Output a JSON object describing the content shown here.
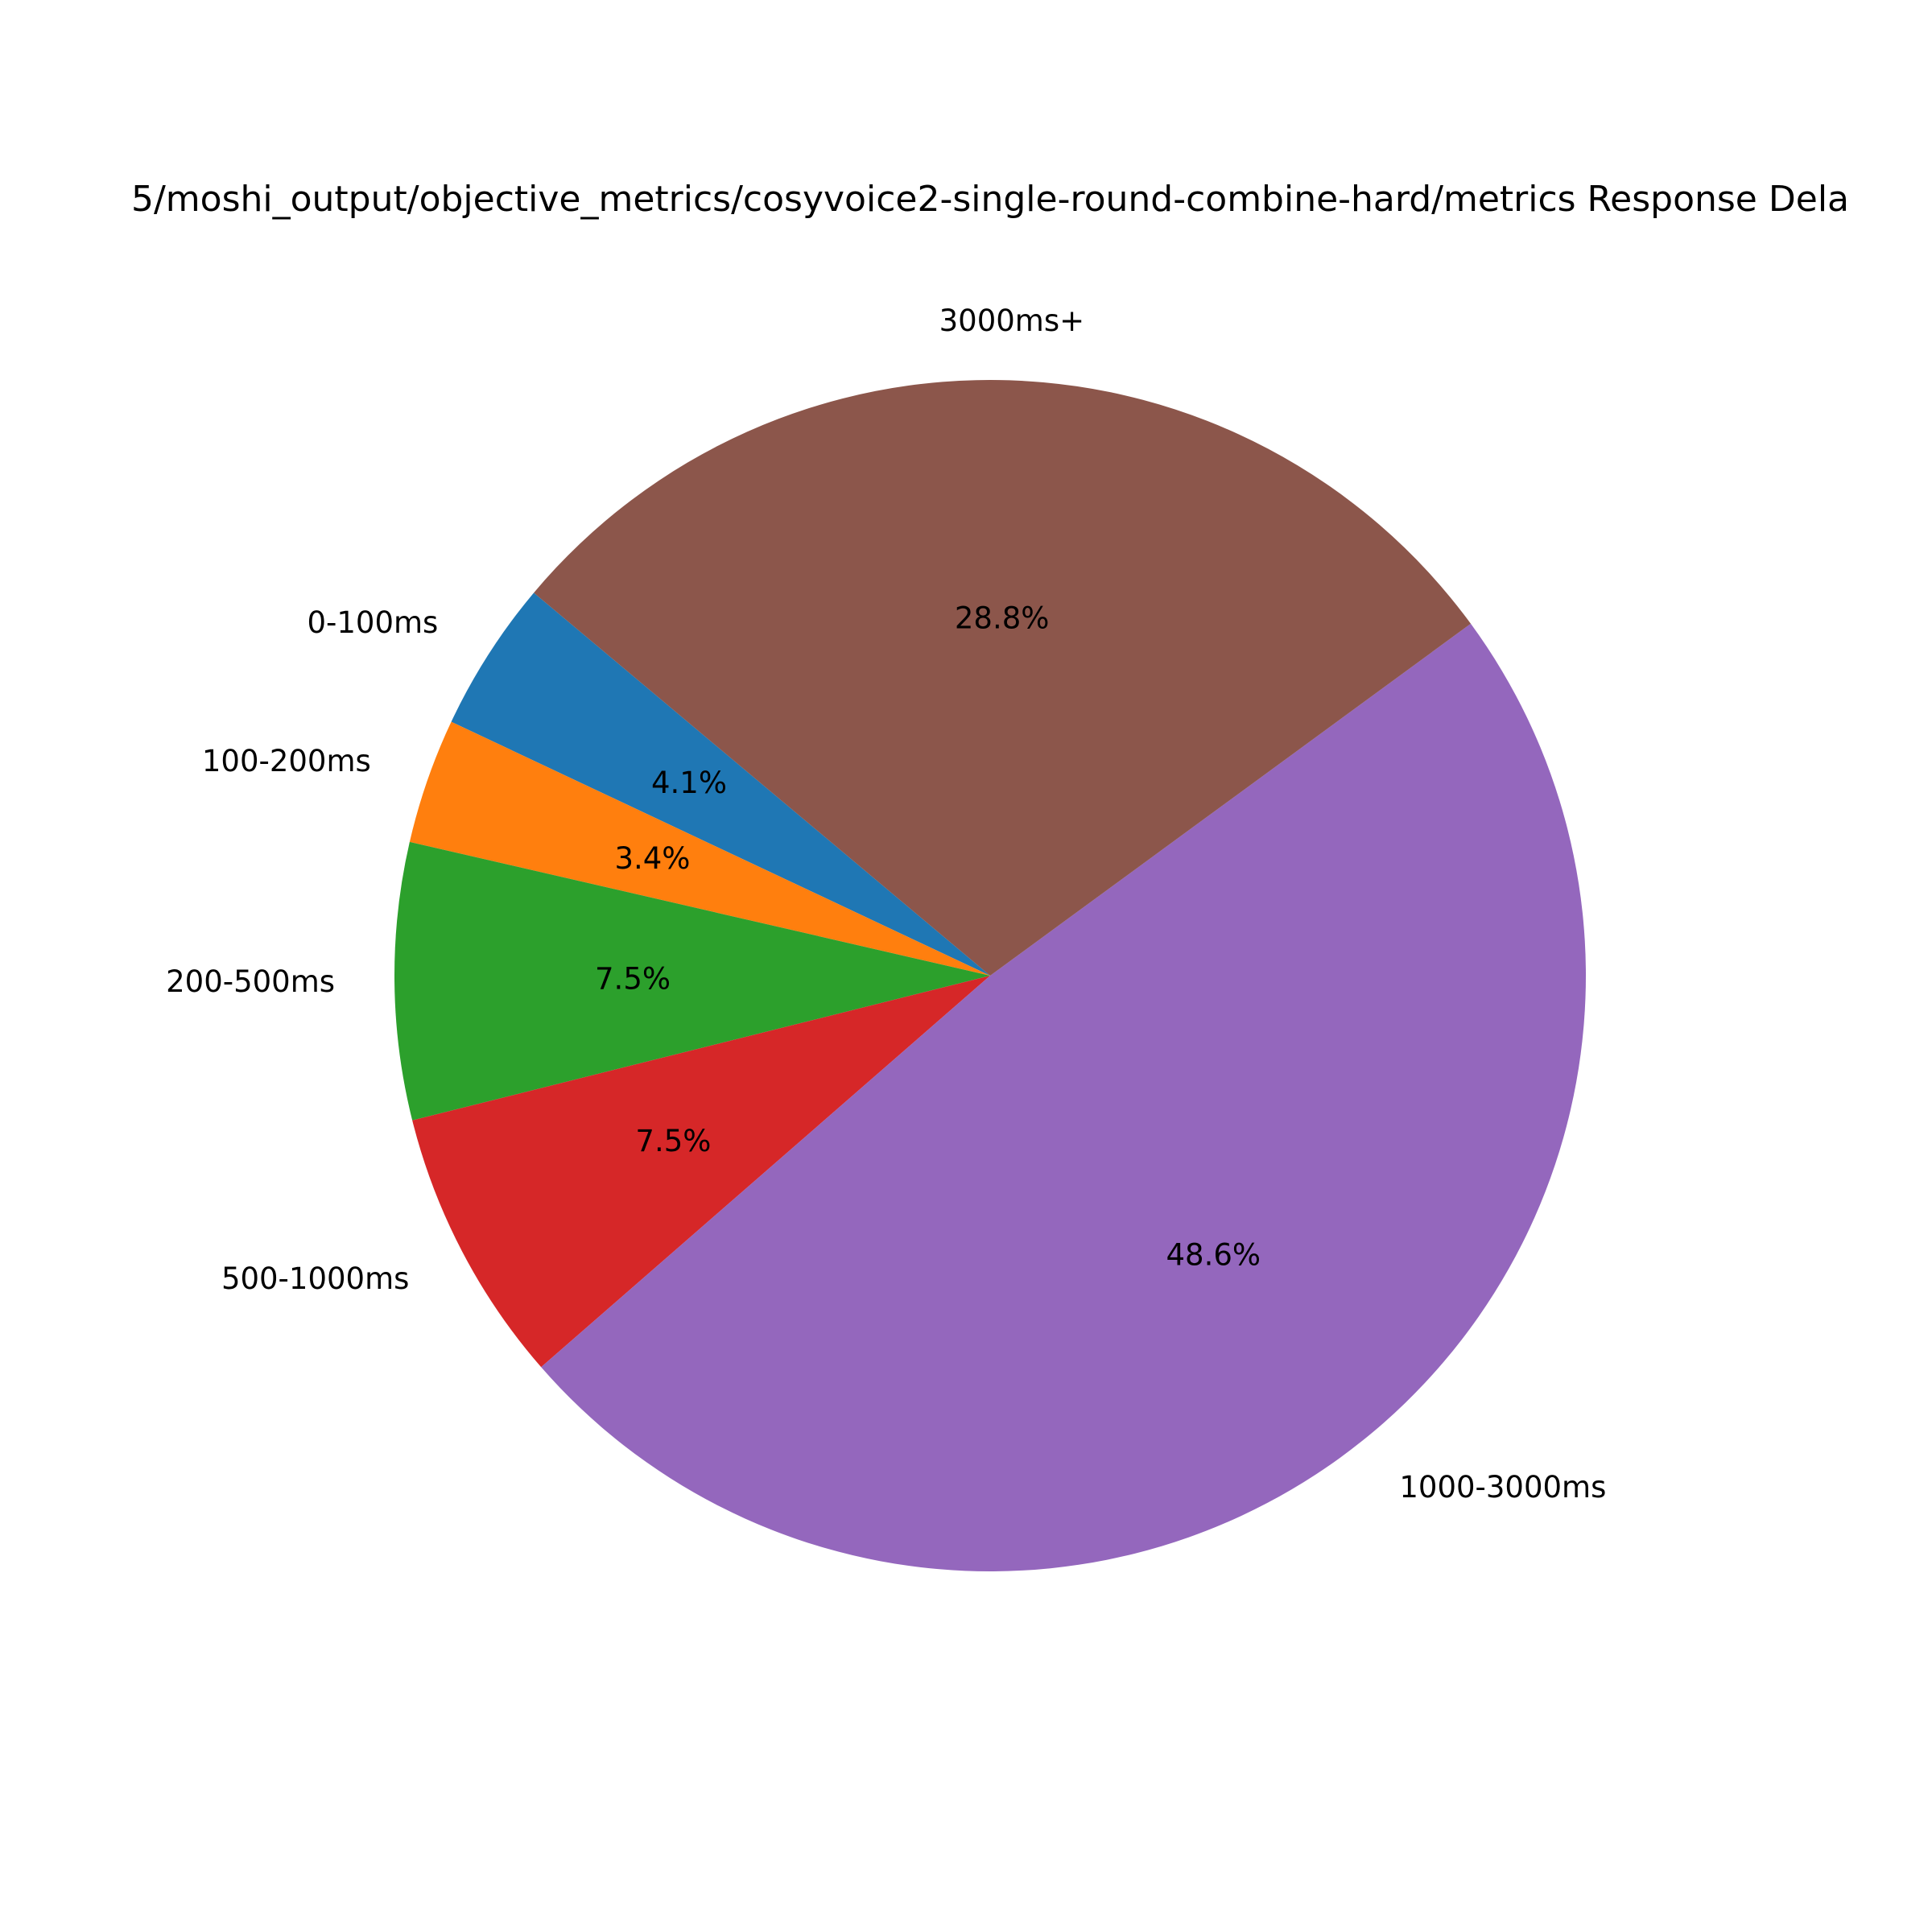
{
  "chart_data": {
    "type": "pie",
    "title": "5/moshi_output/objective_metrics/cosyvoice2-single-round-combine-hard/metrics Response Dela",
    "start_angle_deg": 140,
    "direction": "counterclockwise",
    "slices": [
      {
        "label": "0-100ms",
        "value": 4.1,
        "pct_label": "4.1%",
        "color": "#1f77b4"
      },
      {
        "label": "100-200ms",
        "value": 3.4,
        "pct_label": "3.4%",
        "color": "#ff7f0e"
      },
      {
        "label": "200-500ms",
        "value": 7.5,
        "pct_label": "7.5%",
        "color": "#2ca02c"
      },
      {
        "label": "500-1000ms",
        "value": 7.5,
        "pct_label": "7.5%",
        "color": "#d62728"
      },
      {
        "label": "1000-3000ms",
        "value": 48.6,
        "pct_label": "48.6%",
        "color": "#9467bd"
      },
      {
        "label": "3000ms+",
        "value": 28.8,
        "pct_label": "28.8%",
        "color": "#8c564b"
      }
    ]
  }
}
